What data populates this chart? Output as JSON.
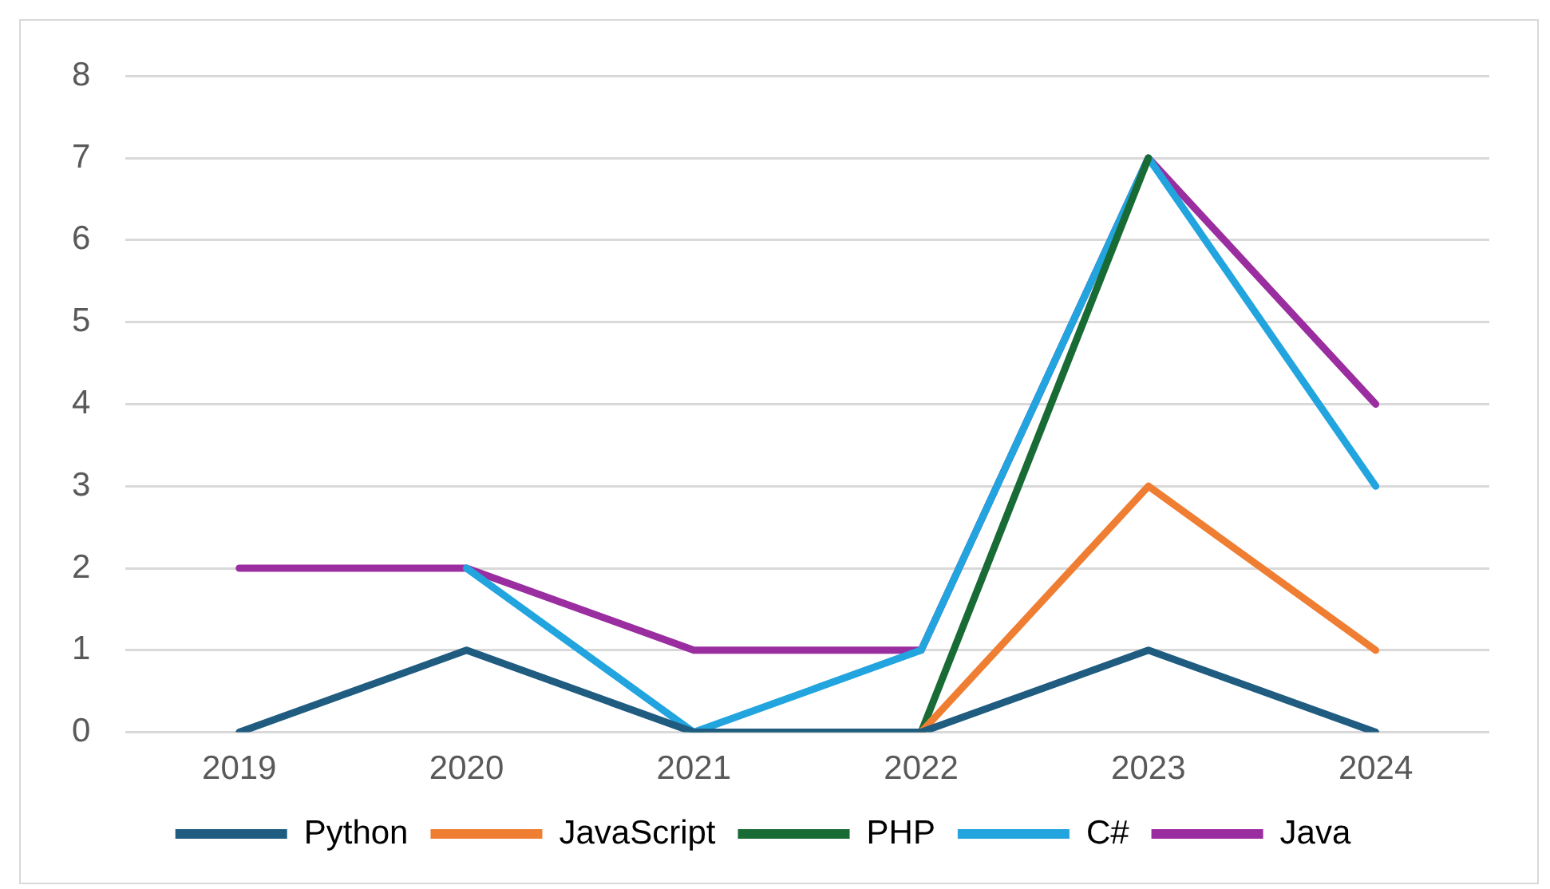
{
  "chart_data": {
    "type": "line",
    "categories": [
      "2019",
      "2020",
      "2021",
      "2022",
      "2023",
      "2024"
    ],
    "series": [
      {
        "name": "Python",
        "color": "#1f5c80",
        "values": [
          0,
          1,
          0,
          0,
          1,
          0
        ]
      },
      {
        "name": "JavaScript",
        "color": "#ef7d32",
        "values": [
          null,
          null,
          null,
          0,
          3,
          1
        ]
      },
      {
        "name": "PHP",
        "color": "#196b35",
        "values": [
          null,
          null,
          0,
          0,
          7,
          null
        ]
      },
      {
        "name": "C#",
        "color": "#22a5de",
        "values": [
          null,
          2,
          0,
          1,
          7,
          3
        ]
      },
      {
        "name": "Java",
        "color": "#9a2d9f",
        "values": [
          2,
          2,
          1,
          1,
          7,
          4
        ]
      }
    ],
    "ylim": [
      0,
      8
    ],
    "yticks": [
      0,
      1,
      2,
      3,
      4,
      5,
      6,
      7,
      8
    ],
    "grid": "y",
    "legend": "bottom",
    "marker": "none",
    "line_style": "solid"
  }
}
